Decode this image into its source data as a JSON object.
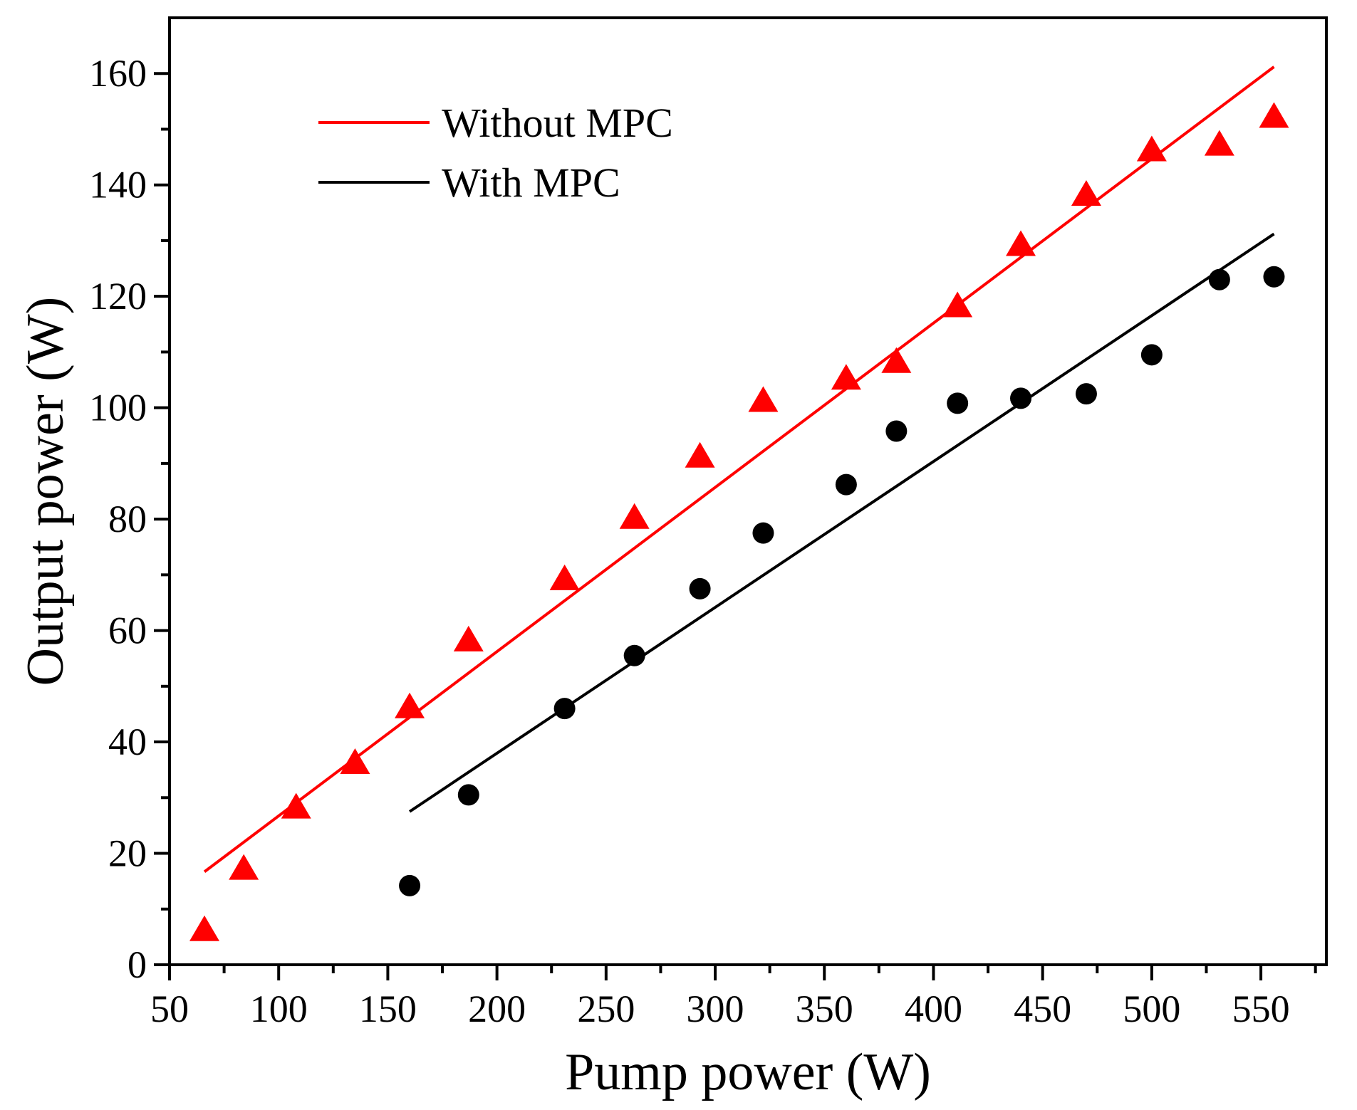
{
  "chart_data": {
    "type": "scatter",
    "title": "",
    "xlabel": "Pump power (W)",
    "ylabel": "Output power (W)",
    "xlim": [
      50,
      580
    ],
    "ylim": [
      0,
      170
    ],
    "xticks": [
      50,
      100,
      150,
      200,
      250,
      300,
      350,
      400,
      450,
      500,
      550
    ],
    "yticks": [
      0,
      20,
      40,
      60,
      80,
      100,
      120,
      140,
      160
    ],
    "xtick_labels": [
      "50",
      "100",
      "150",
      "200",
      "250",
      "300",
      "350",
      "400",
      "450",
      "500",
      "550"
    ],
    "ytick_labels": [
      "0",
      "20",
      "40",
      "60",
      "80",
      "100",
      "120",
      "140",
      "160"
    ],
    "grid": false,
    "legend_position": "top-left",
    "series": [
      {
        "name": "Without MPC",
        "color": "#ff0000",
        "marker": "triangle",
        "x": [
          66,
          84,
          108,
          135,
          160,
          187,
          231,
          263,
          293,
          322,
          360,
          383,
          411,
          440,
          470,
          500,
          531,
          556
        ],
        "y": [
          6,
          17,
          28,
          36,
          46,
          58,
          69,
          80,
          91,
          101,
          105,
          108,
          118,
          129,
          138,
          146,
          147,
          152
        ],
        "fit": {
          "x": [
            66,
            556
          ],
          "y": [
            16.7,
            161.2
          ]
        }
      },
      {
        "name": "With MPC",
        "color": "#000000",
        "marker": "circle",
        "x": [
          160,
          187,
          231,
          263,
          293,
          322,
          360,
          383,
          411,
          440,
          470,
          500,
          531,
          556
        ],
        "y": [
          14.2,
          30.5,
          46,
          55.5,
          67.5,
          77.5,
          86.2,
          95.8,
          100.8,
          101.7,
          102.5,
          109.5,
          123,
          123.5
        ],
        "fit": {
          "x": [
            160,
            556
          ],
          "y": [
            27.5,
            131.2
          ]
        }
      }
    ]
  }
}
